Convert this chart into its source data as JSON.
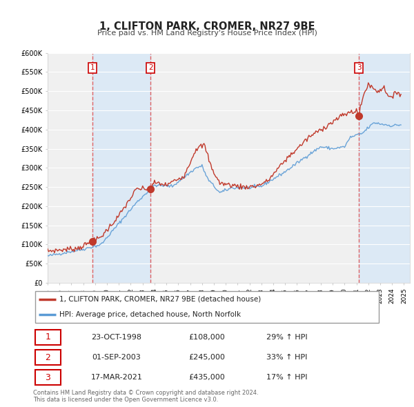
{
  "title": "1, CLIFTON PARK, CROMER, NR27 9BE",
  "subtitle": "Price paid vs. HM Land Registry's House Price Index (HPI)",
  "background_color": "#ffffff",
  "plot_bg_color": "#f0f0f0",
  "shaded_region_color": "#dce9f5",
  "grid_color": "#ffffff",
  "red_line_color": "#c0392b",
  "blue_line_color": "#5b9bd5",
  "sale_marker_color": "#c0392b",
  "dashed_line_color": "#e05555",
  "ylim": [
    0,
    600000
  ],
  "yticks": [
    0,
    50000,
    100000,
    150000,
    200000,
    250000,
    300000,
    350000,
    400000,
    450000,
    500000,
    550000,
    600000
  ],
  "ytick_labels": [
    "£0",
    "£50K",
    "£100K",
    "£150K",
    "£200K",
    "£250K",
    "£300K",
    "£350K",
    "£400K",
    "£450K",
    "£500K",
    "£550K",
    "£600K"
  ],
  "xlim_start": 1995.0,
  "xlim_end": 2025.5,
  "xticks": [
    1995,
    1996,
    1997,
    1998,
    1999,
    2000,
    2001,
    2002,
    2003,
    2004,
    2005,
    2006,
    2007,
    2008,
    2009,
    2010,
    2011,
    2012,
    2013,
    2014,
    2015,
    2016,
    2017,
    2018,
    2019,
    2020,
    2021,
    2022,
    2023,
    2024,
    2025
  ],
  "sales": [
    {
      "num": 1,
      "date": "23-OCT-1998",
      "price": 108000,
      "hpi_pct": 29,
      "year": 1998.8
    },
    {
      "num": 2,
      "date": "01-SEP-2003",
      "price": 245000,
      "hpi_pct": 33,
      "year": 2003.67
    },
    {
      "num": 3,
      "date": "17-MAR-2021",
      "price": 435000,
      "hpi_pct": 17,
      "year": 2021.21
    }
  ],
  "shaded_regions": [
    {
      "x_start": 1998.8,
      "x_end": 2003.67
    },
    {
      "x_start": 2021.21,
      "x_end": 2025.5
    }
  ],
  "legend_property_label": "1, CLIFTON PARK, CROMER, NR27 9BE (detached house)",
  "legend_hpi_label": "HPI: Average price, detached house, North Norfolk",
  "footer_text": "Contains HM Land Registry data © Crown copyright and database right 2024.\nThis data is licensed under the Open Government Licence v3.0."
}
